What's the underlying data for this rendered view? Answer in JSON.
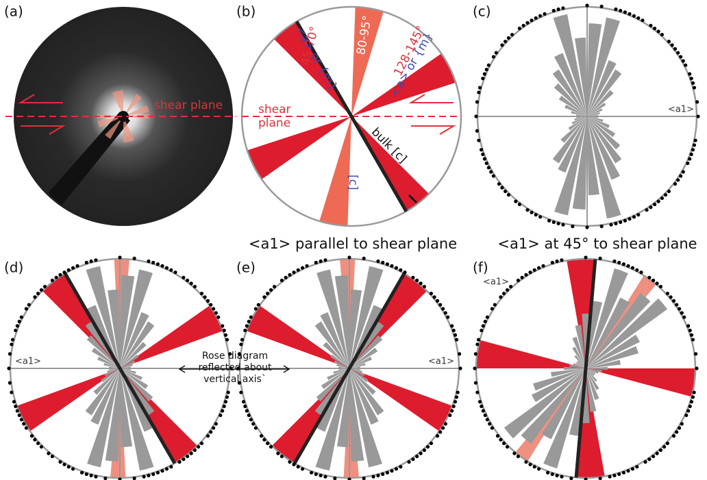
{
  "labels": [
    "(a)",
    "(b)",
    "(c)",
    "(d)",
    "(e)",
    "(f)"
  ],
  "panel_a": {
    "annotation": "shear plane"
  },
  "panel_b": {
    "shear_plane": [
      "shear",
      "plane"
    ],
    "ranges": [
      "45-70°",
      "80-95°",
      "128-145°"
    ],
    "planes": [
      "<a> or {m}",
      "<a> or {m}"
    ],
    "c_axis": "[c]",
    "bulk": "bulk [c]"
  },
  "panel_c": {
    "axis": "<a1>"
  },
  "panel_d": {
    "axis": "<a1>"
  },
  "panel_e": {
    "axis": "<a1>"
  },
  "panel_f": {
    "axis": "<a1>"
  },
  "titles": [
    "<a1> parallel to shear plane",
    "<a1> at 45° to shear plane"
  ],
  "note": [
    "Rose diagram",
    "reflected about",
    "vertical axis`"
  ]
}
